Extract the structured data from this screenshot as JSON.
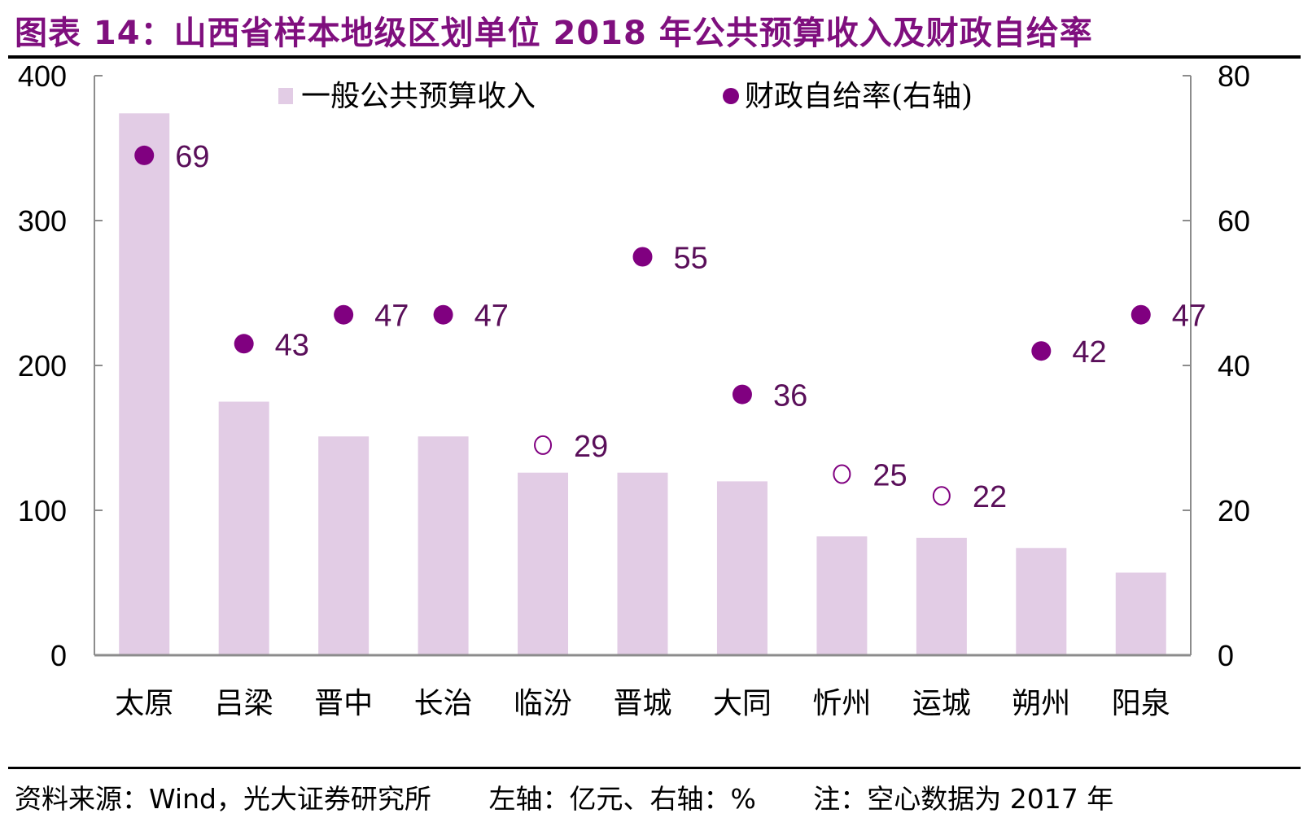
{
  "header": {
    "title": "图表 14：山西省样本地级区划单位 2018 年公共预算收入及财政自给率"
  },
  "footer": {
    "source": "资料来源：Wind，光大证券研究所",
    "axes_note": "左轴：亿元、右轴：%",
    "note": "注：空心数据为 2017 年"
  },
  "colors": {
    "title": "#7f0f7e",
    "bar": "#e2cce5",
    "marker": "#800080",
    "data_label": "#5a0f5a",
    "axis": "#8c8c8c"
  },
  "chart_data": {
    "type": "bar",
    "title": "山西省样本地级区划单位 2018 年公共预算收入及财政自给率",
    "categories": [
      "太原",
      "吕梁",
      "晋中",
      "长治",
      "临汾",
      "晋城",
      "大同",
      "忻州",
      "运城",
      "朔州",
      "阳泉"
    ],
    "series": [
      {
        "name": "一般公共预算收入",
        "type": "bar",
        "axis": "left",
        "values": [
          374,
          175,
          151,
          151,
          126,
          126,
          120,
          82,
          81,
          74,
          57
        ]
      },
      {
        "name": "财政自给率(右轴)",
        "type": "scatter",
        "axis": "right",
        "values": [
          69,
          43,
          47,
          47,
          29,
          55,
          36,
          25,
          22,
          42,
          47
        ],
        "labels": [
          "69",
          "43",
          "47",
          "47",
          "29",
          "55",
          "36",
          "25",
          "22",
          "42",
          "47"
        ],
        "hollow": [
          false,
          false,
          false,
          false,
          true,
          false,
          false,
          true,
          true,
          false,
          false
        ]
      }
    ],
    "left_axis": {
      "label": "亿元",
      "ylim": [
        0,
        400
      ],
      "ticks": [
        "0",
        "100",
        "200",
        "300",
        "400"
      ]
    },
    "right_axis": {
      "label": "%",
      "ylim": [
        0,
        80
      ],
      "ticks": [
        "0",
        "20",
        "40",
        "60",
        "80"
      ]
    },
    "legend": {
      "position": "top",
      "items": [
        "一般公共预算收入",
        "财政自给率(右轴)"
      ]
    },
    "grid": false,
    "note": "空心数据为 2017 年"
  }
}
